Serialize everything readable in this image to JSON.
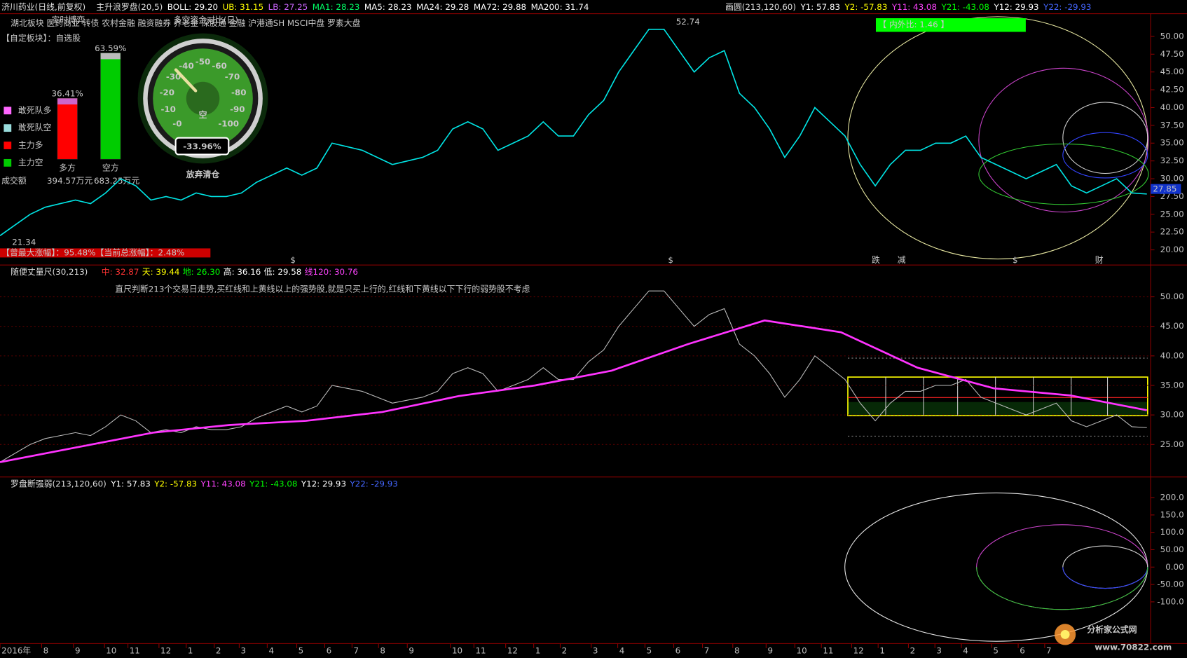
{
  "header": {
    "stock": "济川药业(日线,前复权)",
    "indicator": "主升浪罗盘(20,5)",
    "items": [
      {
        "text": "BOLL: 29.20",
        "color": "#ffffff"
      },
      {
        "text": "UB: 31.15",
        "color": "#ffff00"
      },
      {
        "text": "LB: 27.25",
        "color": "#cc66ff"
      },
      {
        "text": "MA1: 28.23",
        "color": "#00ff66"
      },
      {
        "text": "MA5: 28.23",
        "color": "#ffffff"
      },
      {
        "text": "MA24: 29.28",
        "color": "#ffffff"
      },
      {
        "text": "MA72: 29.88",
        "color": "#ffffff"
      },
      {
        "text": "MA200: 31.74",
        "color": "#ffffff"
      }
    ],
    "right_indicator": "画圆(213,120,60)",
    "right_items": [
      {
        "text": "Y1: 57.83",
        "color": "#ffffff"
      },
      {
        "text": "Y2: -57.83",
        "color": "#ffff00"
      },
      {
        "text": "Y11: 43.08",
        "color": "#ff44ff"
      },
      {
        "text": "Y21: -43.08",
        "color": "#00ff00"
      },
      {
        "text": "Y12: 29.93",
        "color": "#ffffff"
      },
      {
        "text": "Y22: -29.93",
        "color": "#4466ff"
      }
    ]
  },
  "sectors": "湖北板块 医药商业 转债 农村金融 融资融券 养老金 深股通 金融 沪港通SH MSCI中盘 罗素大盘",
  "custom_block": "【自定板块】：自选股",
  "legend": [
    {
      "text": "敢死队多",
      "color": "#ff66ff"
    },
    {
      "text": "敢死队空",
      "color": "#99dddd"
    },
    {
      "text": "主力多",
      "color": "#ff0000"
    },
    {
      "text": "主力空",
      "color": "#00cc00"
    }
  ],
  "turnover": {
    "label": "成交额",
    "values": [
      "394.57万元",
      "683.25万元"
    ]
  },
  "gain_banner": "【曾最大涨幅】：95.48%【当前总涨幅】：2.48%",
  "gauge": {
    "title": "多空资金对比(日)",
    "caption": "实时博弈",
    "center_text": "空",
    "value": -33.96,
    "value_label": "-33.96%",
    "verdict": "放弃清仓",
    "ticks": [
      {
        "value": 0,
        "label": "-0"
      },
      -10,
      -20,
      -30,
      -40,
      -50,
      -60,
      -70,
      -80,
      -90,
      -100
    ]
  },
  "power_bars": {
    "categories": [
      "多方",
      "空方"
    ],
    "values": [
      36.41,
      63.59
    ],
    "value_labels": [
      "36.41%",
      "63.59%"
    ],
    "colors": [
      "#ff0000",
      "#00cc00"
    ]
  },
  "chart_data": [
    {
      "type": "line",
      "color": "#00e5e5",
      "values": [
        22,
        23.5,
        25,
        26,
        26.5,
        27,
        26.5,
        28,
        30,
        29,
        27,
        27.5,
        27,
        28,
        27.5,
        27.5,
        28,
        29.5,
        30.5,
        31.5,
        30.5,
        31.5,
        35,
        34.5,
        34,
        33,
        32,
        32.5,
        33,
        34,
        37,
        38,
        37,
        34,
        35,
        36,
        38,
        36,
        36,
        39,
        41,
        45,
        48,
        51,
        51,
        48,
        45,
        47,
        48,
        42,
        40,
        37,
        33,
        36,
        40,
        38,
        36,
        32,
        29,
        32,
        34,
        34,
        35,
        35,
        36,
        33,
        32,
        31,
        30,
        31,
        32,
        29,
        28,
        29,
        30,
        28,
        27.85
      ],
      "ylim": [
        17.87,
        53.19
      ],
      "yticks": [
        {
          "value": 50,
          "label": "50.00"
        },
        {
          "value": 47.5,
          "label": "47.50"
        },
        {
          "value": 45,
          "label": "45.00"
        },
        {
          "value": 42.5,
          "label": "42.50"
        },
        {
          "value": 40,
          "label": "40.00"
        },
        {
          "value": 37.5,
          "label": "37.50"
        },
        {
          "value": 35,
          "label": "35.00"
        },
        {
          "value": 32.5,
          "label": "32.50"
        },
        {
          "value": 30,
          "label": "30.00"
        },
        {
          "value": 27.5,
          "label": "27.50"
        },
        {
          "value": 25,
          "label": "25.00"
        },
        {
          "value": 22.5,
          "label": "22.50"
        },
        {
          "value": 20,
          "label": "20.00"
        }
      ],
      "low_label": "21.34",
      "high_label": "52.74",
      "last_label": "27.85",
      "ratio_label": "【 内外比: 1.46 】",
      "markers": [
        "$",
        "$",
        "跌",
        "减",
        "$",
        "财"
      ]
    },
    {
      "type": "line",
      "title": "随便丈量尺(30,213)",
      "items": [
        {
          "text": "中: 32.87",
          "color": "#ff3333"
        },
        {
          "text": "天: 39.44",
          "color": "#ffff00"
        },
        {
          "text": "地: 26.30",
          "color": "#00ff00"
        },
        {
          "text": "高: 36.16",
          "color": "#ffffff"
        },
        {
          "text": "低: 29.58",
          "color": "#ffffff"
        },
        {
          "text": "线120: 30.76",
          "color": "#ff44ff"
        }
      ],
      "note": "直尺判断213个交易日走势,买红线和上黄线以上的强势股,就是只买上行的,红线和下黄线以下下行的弱势股不考虑",
      "ma_color": "#ff33ff",
      "ma_values": [
        22,
        24.5,
        27,
        28.3,
        29,
        30.5,
        33.2,
        35,
        37.5,
        42,
        46,
        44,
        38,
        34.5,
        33.3,
        30.8
      ],
      "ylim": [
        19.49,
        52.82
      ],
      "yticks": [
        {
          "value": 50,
          "label": "50.00"
        },
        {
          "value": 45,
          "label": "45.00"
        },
        {
          "value": 40,
          "label": "40.00"
        },
        {
          "value": 35,
          "label": "35.00"
        },
        {
          "value": 30,
          "label": "30.00"
        },
        {
          "value": 25,
          "label": "25.00"
        }
      ]
    },
    {
      "type": "ellipse",
      "title": "罗盘断强弱(213,120,60)",
      "items": [
        {
          "text": "Y1: 57.83",
          "color": "#ffffff"
        },
        {
          "text": "Y2: -57.83",
          "color": "#ffff00"
        },
        {
          "text": "Y11: 43.08",
          "color": "#ff44ff"
        },
        {
          "text": "Y21: -43.08",
          "color": "#00ff00"
        },
        {
          "text": "Y12: 29.93",
          "color": "#ffffff"
        },
        {
          "text": "Y22: -29.93",
          "color": "#4466ff"
        }
      ],
      "ylim": [
        -220,
        220
      ],
      "yticks": [
        {
          "value": 200,
          "label": "200.0"
        },
        {
          "value": 150,
          "label": "150.0"
        },
        {
          "value": 100,
          "label": "100.0"
        },
        {
          "value": 50,
          "label": "50.00"
        },
        {
          "value": 0,
          "label": "0.00"
        },
        {
          "value": -50,
          "label": "-50.00"
        },
        {
          "value": -100,
          "label": "-100.0"
        }
      ]
    }
  ],
  "x_axis": {
    "labels": [
      "2016年",
      "8",
      "9",
      "10",
      "11",
      "12",
      "1",
      "2",
      "3",
      "4",
      "5",
      "6",
      "7",
      "8",
      "9",
      "10",
      "11",
      "12",
      "1",
      "2",
      "3",
      "4",
      "5",
      "6",
      "7",
      "8",
      "9",
      "10",
      "11",
      "12",
      "1",
      "2",
      "3",
      "4",
      "5",
      "6",
      "7"
    ]
  },
  "watermark": {
    "title": "分析家公式网",
    "url": "www.70822.com"
  }
}
